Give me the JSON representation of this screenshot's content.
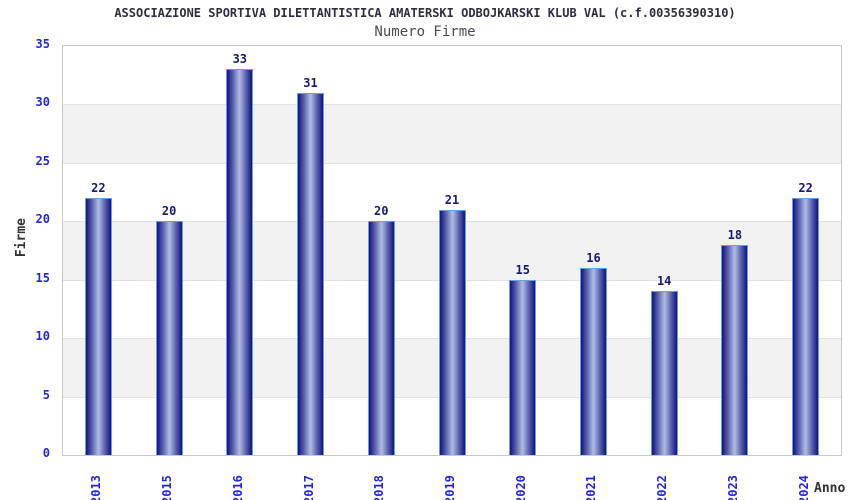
{
  "header": {
    "title": "ASSOCIAZIONE SPORTIVA DILETTANTISTICA AMATERSKI ODBOJKARSKI KLUB VAL (c.f.00356390310)",
    "subtitle": "Numero Firme"
  },
  "chart_data": {
    "type": "bar",
    "title": "Numero Firme",
    "categories": [
      "2013",
      "2015",
      "2016",
      "2017",
      "2018",
      "2019",
      "2020",
      "2021",
      "2022",
      "2023",
      "2024"
    ],
    "values": [
      22,
      20,
      33,
      31,
      20,
      21,
      15,
      16,
      14,
      18,
      22
    ],
    "xlabel": "Anno",
    "ylabel": "Firme",
    "ylim": [
      0,
      35
    ],
    "yticks": [
      0,
      5,
      10,
      15,
      20,
      25,
      30,
      35
    ],
    "legend": "none",
    "grid": "alternating horizontal bands every 5 units with light gridlines",
    "colors": {
      "bar_edge": "#14147c",
      "bar_center": "#b2bbe2",
      "bar_border": "#62a1e6",
      "axis_tick_label": "#2424dd",
      "value_label": "#191970",
      "band_gray": "#f2f2f2",
      "gridline": "#e2e2e2",
      "plot_border": "#c8c8c8",
      "title_color": "#2e2e40",
      "subtitle_color": "#4d4d4d",
      "axis_title_color": "#333333",
      "background": "#ffffff"
    }
  }
}
